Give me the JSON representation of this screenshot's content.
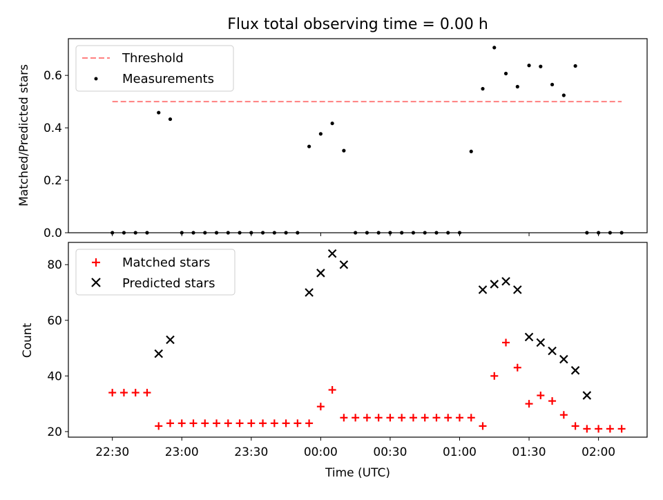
{
  "chart_data": [
    {
      "type": "scatter",
      "title": "Flux total observing time = 0.00 h",
      "xlabel": "",
      "ylabel": "Matched/Predicted stars",
      "ylim": [
        0,
        0.74
      ],
      "yticks": [
        0.0,
        0.2,
        0.4,
        0.6
      ],
      "ytick_labels": [
        "0.0",
        "0.2",
        "0.4",
        "0.6"
      ],
      "grid": false,
      "legend_position": "top-left",
      "legend": [
        "Threshold",
        "Measurements"
      ],
      "threshold": {
        "name": "Threshold",
        "value": 0.5,
        "x_start": "22:30",
        "x_end": "02:10",
        "color": "#ff7f7f",
        "style": "dashed"
      },
      "series": [
        {
          "name": "Measurements",
          "marker": "dot",
          "color": "#000000",
          "x": [
            "22:30",
            "22:35",
            "22:40",
            "22:45",
            "22:50",
            "22:55",
            "23:00",
            "23:05",
            "23:10",
            "23:15",
            "23:20",
            "23:25",
            "23:30",
            "23:35",
            "23:40",
            "23:45",
            "23:50",
            "23:55",
            "00:00",
            "00:05",
            "00:10",
            "00:15",
            "00:20",
            "00:25",
            "00:30",
            "00:35",
            "00:40",
            "00:45",
            "00:50",
            "00:55",
            "01:00",
            "01:05",
            "01:10",
            "01:15",
            "01:20",
            "01:25",
            "01:30",
            "01:35",
            "01:40",
            "01:45",
            "01:50",
            "01:55",
            "02:00",
            "02:05",
            "02:10"
          ],
          "y": [
            0,
            0,
            0,
            0,
            0.458,
            0.433,
            0,
            0,
            0,
            0,
            0,
            0,
            0,
            0,
            0,
            0,
            0,
            0.329,
            0.377,
            0.417,
            0.313,
            0,
            0,
            0,
            0,
            0,
            0,
            0,
            0,
            0,
            0,
            0.31,
            0.549,
            0.706,
            0.607,
            0.557,
            0.638,
            0.634,
            0.565,
            0.524,
            0.636,
            0,
            0,
            0,
            0
          ]
        }
      ]
    },
    {
      "type": "scatter",
      "title": "",
      "xlabel": "Time (UTC)",
      "ylabel": "Count",
      "ylim": [
        18,
        88
      ],
      "yticks": [
        20,
        40,
        60,
        80
      ],
      "ytick_labels": [
        "20",
        "40",
        "60",
        "80"
      ],
      "xlim": [
        "22:11",
        "02:21"
      ],
      "xticks": [
        "22:30",
        "23:00",
        "23:30",
        "00:00",
        "00:30",
        "01:00",
        "01:30",
        "02:00"
      ],
      "grid": false,
      "legend_position": "top-left",
      "legend": [
        "Matched stars",
        "Predicted stars"
      ],
      "series": [
        {
          "name": "Matched stars",
          "marker": "plus",
          "color": "#ff0000",
          "x": [
            "22:30",
            "22:35",
            "22:40",
            "22:45",
            "22:50",
            "22:55",
            "23:00",
            "23:05",
            "23:10",
            "23:15",
            "23:20",
            "23:25",
            "23:30",
            "23:35",
            "23:40",
            "23:45",
            "23:50",
            "23:55",
            "00:00",
            "00:05",
            "00:10",
            "00:15",
            "00:20",
            "00:25",
            "00:30",
            "00:35",
            "00:40",
            "00:45",
            "00:50",
            "00:55",
            "01:00",
            "01:05",
            "01:10",
            "01:15",
            "01:20",
            "01:25",
            "01:30",
            "01:35",
            "01:40",
            "01:45",
            "01:50",
            "01:55",
            "02:00",
            "02:05",
            "02:10"
          ],
          "y": [
            34,
            34,
            34,
            34,
            22,
            23,
            23,
            23,
            23,
            23,
            23,
            23,
            23,
            23,
            23,
            23,
            23,
            23,
            29,
            35,
            25,
            25,
            25,
            25,
            25,
            25,
            25,
            25,
            25,
            25,
            25,
            25,
            22,
            40,
            52,
            43,
            30,
            33,
            31,
            26,
            22,
            21,
            21,
            21,
            21
          ]
        },
        {
          "name": "Predicted stars",
          "marker": "x",
          "color": "#000000",
          "x": [
            "22:50",
            "22:55",
            "23:55",
            "00:00",
            "00:05",
            "00:10",
            "01:10",
            "01:15",
            "01:20",
            "01:25",
            "01:30",
            "01:35",
            "01:40",
            "01:45",
            "01:50",
            "01:55"
          ],
          "y": [
            48,
            53,
            70,
            77,
            84,
            80,
            71,
            73,
            74,
            71,
            54,
            52,
            49,
            46,
            42,
            33
          ]
        }
      ]
    }
  ]
}
